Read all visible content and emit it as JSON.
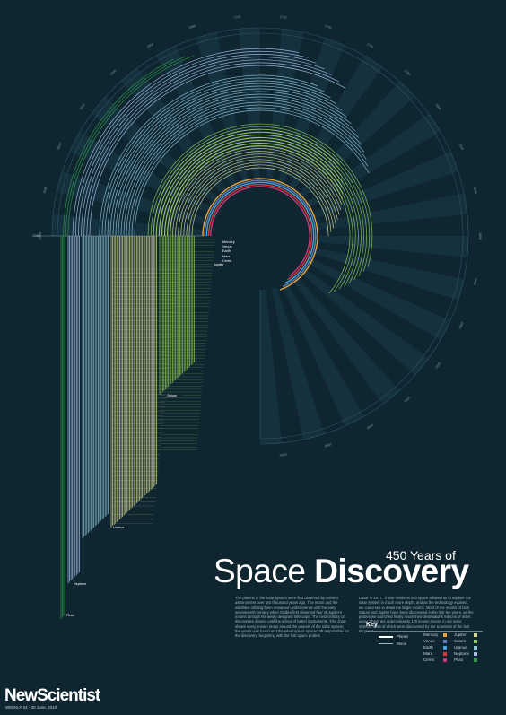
{
  "title": {
    "top": "450 Years of",
    "light": "Space ",
    "bold": "Discovery"
  },
  "body": {
    "col1": "The planets in the solar system were first observed by ancient astronomers over two thousand years ago. The moon and the satellites orbiting them remained undiscovered until the early seventeenth century when Galileo first observed four of Jupiter's moons through his newly designed telescope. The next century of discoveries slowed until the arrival of better instruments. This chart shows every known moon around the planets of the solar system, the year it was found and the telescope or spacecraft responsible for the discovery, beginning with the first space probes.",
    "col2": "Lunar in 1977. These missions into space allowed us to explore our solar system in much more depth, and as the technology evolved, we could see in detail the larger moons. Most of the moons of both Saturn and Jupiter have been discovered in the last ten years, as the probes we launched finally reach their destinations millions of miles away. There are approximately 170 known moons in our solar system, most of which were discovered by the scientists of the last 50 years."
  },
  "key": {
    "title": "Key",
    "planet_label": "Planet",
    "moon_label": "Moon",
    "bodies": [
      {
        "name": "Mercury",
        "color": "#e8a33a"
      },
      {
        "name": "Venus",
        "color": "#5c7fb8"
      },
      {
        "name": "Earth",
        "color": "#4aa3d8"
      },
      {
        "name": "Mars",
        "color": "#d83a3a"
      },
      {
        "name": "Ceres",
        "color": "#c23a7a"
      },
      {
        "name": "Jupiter",
        "color": "#d8d890"
      },
      {
        "name": "Saturn",
        "color": "#8fc85a"
      },
      {
        "name": "Uranus",
        "color": "#8ec3d8"
      },
      {
        "name": "Neptune",
        "color": "#a8c0e8"
      },
      {
        "name": "Pluto",
        "color": "#2f9a4a"
      }
    ]
  },
  "branding": {
    "name": "NewScientist",
    "issue": "WEEKLY 24 - 30 June, 2010"
  },
  "chart_data": {
    "type": "radial-timeline",
    "title": "450 Years of Space Discovery",
    "year_range": [
      1560,
      2010
    ],
    "year_ticks": [
      1560,
      1580,
      1600,
      1620,
      1640,
      1660,
      1680,
      1700,
      1720,
      1740,
      1760,
      1780,
      1800,
      1820,
      1840,
      1860,
      1880,
      1900,
      1920,
      1940,
      1960,
      1980,
      2000
    ],
    "start_label": "1560",
    "planet_labels": [
      "Mercury",
      "Venus",
      "Earth",
      "Mars",
      "Ceres",
      "Jupiter",
      "Saturn",
      "Uranus",
      "Neptune",
      "Pluto"
    ],
    "series": [
      {
        "name": "Mercury",
        "kind": "planet",
        "moons": 0
      },
      {
        "name": "Venus",
        "kind": "planet",
        "moons": 0
      },
      {
        "name": "Earth",
        "kind": "planet",
        "moons": 1
      },
      {
        "name": "Mars",
        "kind": "planet",
        "moons": 2
      },
      {
        "name": "Ceres",
        "kind": "planet",
        "moons": 0
      },
      {
        "name": "Jupiter",
        "kind": "planet",
        "moons": 63
      },
      {
        "name": "Saturn",
        "kind": "planet",
        "moons": 62
      },
      {
        "name": "Uranus",
        "kind": "planet",
        "moons": 27
      },
      {
        "name": "Neptune",
        "kind": "planet",
        "moons": 13
      },
      {
        "name": "Pluto",
        "kind": "planet",
        "moons": 3
      }
    ]
  }
}
